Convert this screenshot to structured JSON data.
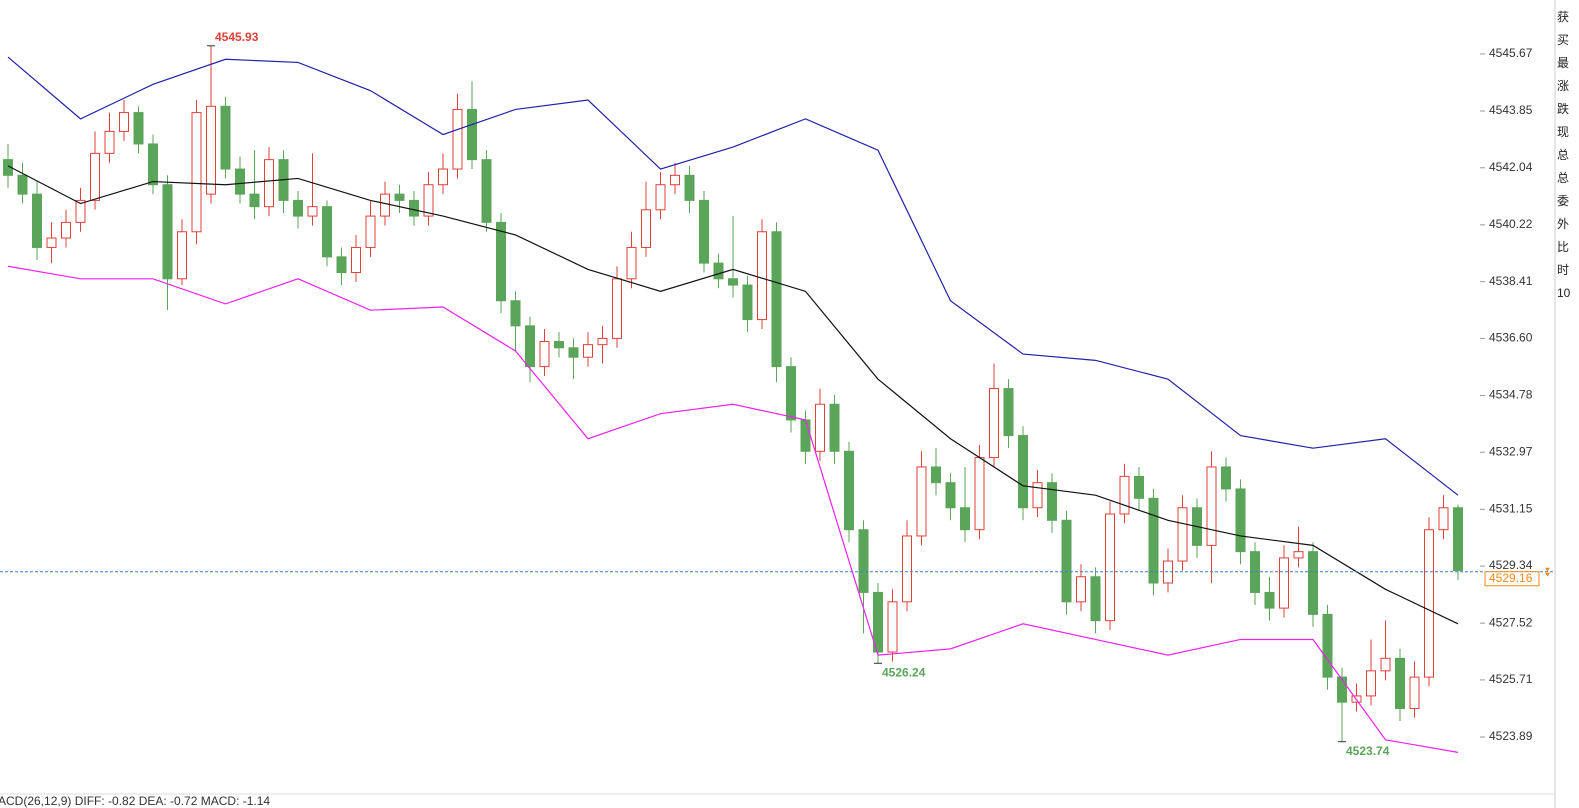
{
  "chart_data": {
    "type": "candlestick",
    "open": [
      4542.3,
      4541.8,
      4541.2,
      4539.5,
      4539.8,
      4540.3,
      4541.0,
      4542.5,
      4543.2,
      4543.8,
      4542.8,
      4541.5,
      4538.5,
      4540.0,
      4541.2,
      4544.0,
      4542.0,
      4541.2,
      4540.8,
      4542.3,
      4541.0,
      4540.5,
      4540.8,
      4539.2,
      4538.7,
      4539.5,
      4540.5,
      4541.2,
      4541.0,
      4540.5,
      4541.5,
      4542.0,
      4543.9,
      4542.3,
      4540.3,
      4537.8,
      4537.0,
      4535.7,
      4536.5,
      4536.3,
      4536.0,
      4536.4,
      4536.6,
      4538.5,
      4539.5,
      4540.7,
      4541.5,
      4541.8,
      4541.0,
      4539.0,
      4538.5,
      4538.3,
      4537.2,
      4540.0,
      4535.7,
      4534.0,
      4533.0,
      4534.5,
      4533.0,
      4530.5,
      4528.5,
      4526.6,
      4528.2,
      4530.3,
      4532.5,
      4532.0,
      4531.2,
      4530.5,
      4532.8,
      4535.0,
      4533.5,
      4531.2,
      4532.0,
      4530.8,
      4528.2,
      4529.0,
      4527.6,
      4531.0,
      4532.2,
      4531.5,
      4528.8,
      4529.5,
      4531.2,
      4530.0,
      4532.5,
      4531.8,
      4529.8,
      4528.5,
      4528.0,
      4529.6,
      4529.8,
      4527.8,
      4525.8,
      4525.0,
      4525.2,
      4526.0,
      4526.4,
      4524.8,
      4525.8,
      4530.5,
      4531.2
    ],
    "high": [
      4542.8,
      4542.2,
      4541.6,
      4540.3,
      4540.7,
      4541.4,
      4543.2,
      4543.8,
      4544.2,
      4544.0,
      4543.1,
      4541.8,
      4540.4,
      4544.2,
      4545.93,
      4544.3,
      4542.4,
      4542.6,
      4542.7,
      4542.6,
      4541.3,
      4542.5,
      4541.0,
      4539.5,
      4539.9,
      4541.0,
      4541.6,
      4541.5,
      4541.3,
      4541.9,
      4542.5,
      4544.4,
      4544.8,
      4542.6,
      4540.6,
      4538.1,
      4537.3,
      4536.9,
      4536.8,
      4536.6,
      4536.8,
      4537.0,
      4538.9,
      4540.0,
      4541.6,
      4541.9,
      4542.2,
      4542.1,
      4541.3,
      4539.3,
      4540.5,
      4538.6,
      4540.4,
      4540.3,
      4536.0,
      4534.3,
      4535.0,
      4534.8,
      4533.3,
      4530.8,
      4528.8,
      4528.6,
      4530.8,
      4533.0,
      4533.1,
      4532.3,
      4532.5,
      4533.2,
      4535.8,
      4535.3,
      4533.8,
      4532.4,
      4532.3,
      4531.1,
      4529.4,
      4529.3,
      4531.4,
      4532.6,
      4532.5,
      4531.8,
      4529.9,
      4531.6,
      4531.5,
      4533.0,
      4532.8,
      4532.1,
      4530.1,
      4529.0,
      4530.0,
      4530.6,
      4530.1,
      4528.1,
      4526.1,
      4525.6,
      4527.0,
      4527.6,
      4526.7,
      4526.3,
      4530.9,
      4531.6,
      4531.3
    ],
    "low": [
      4541.4,
      4540.9,
      4539.1,
      4539.0,
      4539.5,
      4540.0,
      4540.7,
      4542.2,
      4542.9,
      4542.5,
      4541.2,
      4537.5,
      4538.3,
      4539.6,
      4540.9,
      4541.7,
      4540.9,
      4540.4,
      4540.5,
      4540.6,
      4540.1,
      4540.2,
      4538.9,
      4538.3,
      4538.4,
      4539.2,
      4540.2,
      4540.6,
      4540.2,
      4540.2,
      4541.2,
      4541.7,
      4542.0,
      4540.0,
      4537.4,
      4536.2,
      4535.2,
      4535.4,
      4536.0,
      4535.3,
      4535.7,
      4535.8,
      4536.3,
      4538.2,
      4539.2,
      4540.4,
      4541.2,
      4540.6,
      4538.7,
      4538.2,
      4537.9,
      4536.8,
      4536.9,
      4535.2,
      4533.6,
      4532.6,
      4532.7,
      4532.6,
      4530.1,
      4527.2,
      4526.24,
      4526.3,
      4527.9,
      4530.0,
      4531.6,
      4530.8,
      4530.1,
      4530.2,
      4532.5,
      4533.1,
      4530.8,
      4530.9,
      4530.4,
      4527.8,
      4527.9,
      4527.2,
      4527.3,
      4530.7,
      4531.1,
      4528.4,
      4528.5,
      4529.2,
      4529.6,
      4528.8,
      4531.4,
      4529.4,
      4528.1,
      4527.6,
      4527.7,
      4529.3,
      4527.4,
      4525.4,
      4523.74,
      4524.7,
      4524.9,
      4525.7,
      4524.4,
      4524.5,
      4525.5,
      4530.2,
      4528.9
    ],
    "close": [
      4541.8,
      4541.2,
      4539.5,
      4539.8,
      4540.3,
      4541.0,
      4542.5,
      4543.2,
      4543.8,
      4542.8,
      4541.5,
      4538.5,
      4540.0,
      4543.8,
      4544.0,
      4542.0,
      4541.2,
      4540.8,
      4542.3,
      4541.0,
      4540.5,
      4540.8,
      4539.2,
      4538.7,
      4539.5,
      4540.5,
      4541.2,
      4541.0,
      4540.5,
      4541.5,
      4542.0,
      4543.9,
      4542.3,
      4540.3,
      4537.8,
      4537.0,
      4535.7,
      4536.5,
      4536.3,
      4536.0,
      4536.4,
      4536.6,
      4538.5,
      4539.5,
      4540.7,
      4541.5,
      4541.8,
      4541.0,
      4539.0,
      4538.5,
      4538.3,
      4537.2,
      4540.0,
      4535.7,
      4534.0,
      4533.0,
      4534.5,
      4533.0,
      4530.5,
      4528.5,
      4526.6,
      4528.2,
      4530.3,
      4532.5,
      4532.0,
      4531.2,
      4530.5,
      4532.8,
      4535.0,
      4533.5,
      4531.2,
      4532.0,
      4530.8,
      4528.2,
      4529.0,
      4527.6,
      4531.0,
      4532.2,
      4531.5,
      4528.8,
      4529.5,
      4531.2,
      4530.0,
      4532.5,
      4531.8,
      4529.8,
      4528.5,
      4528.0,
      4529.6,
      4529.8,
      4527.8,
      4525.8,
      4525.0,
      4525.2,
      4526.0,
      4526.4,
      4524.8,
      4525.8,
      4530.5,
      4531.2,
      4529.2
    ],
    "up_color": "#e0403a",
    "down_color": "#5aa55a",
    "band_x": [
      0,
      5,
      10,
      15,
      20,
      25,
      30,
      35,
      40,
      45,
      50,
      55,
      60,
      65,
      70,
      75,
      80,
      85,
      90,
      95,
      100
    ],
    "series": [
      {
        "color": "#2222a8",
        "values": [
          4545.57,
          4543.6,
          4544.7,
          4545.5,
          4545.4,
          4544.5,
          4543.1,
          4543.9,
          4544.2,
          4542.0,
          4542.7,
          4543.6,
          4542.6,
          4537.8,
          4536.1,
          4535.9,
          4535.3,
          4533.5,
          4533.1,
          4533.4,
          4531.6
        ]
      },
      {
        "color": "#111111",
        "values": [
          4542.1,
          4540.9,
          4541.6,
          4541.5,
          4541.7,
          4541.0,
          4540.5,
          4539.9,
          4538.8,
          4538.1,
          4538.8,
          4538.1,
          4535.3,
          4533.4,
          4531.9,
          4531.6,
          4530.8,
          4530.3,
          4530.0,
          4528.6,
          4527.5
        ]
      },
      {
        "color": "#ee22ee",
        "values": [
          4538.9,
          4538.5,
          4538.5,
          4537.7,
          4538.5,
          4537.5,
          4537.6,
          4536.2,
          4533.4,
          4534.2,
          4534.5,
          4534.0,
          4526.5,
          4526.7,
          4527.5,
          4527.0,
          4526.5,
          4527.0,
          4527.0,
          4523.8,
          4523.4
        ]
      }
    ],
    "markers": [
      4545.93,
      4526.24,
      4523.74
    ],
    "last_price": 4529.16,
    "ylim": [
      4522.2,
      4547.39
    ],
    "yticks": [
      4523.89,
      4525.71,
      4527.52,
      4529.34,
      4531.15,
      4532.97,
      4534.78,
      {
        "value": 4536.6,
        "label": "4536.60"
      },
      4538.41,
      4540.22,
      4542.04,
      4543.85,
      4545.67
    ],
    "indicator_label": "ACD(26,12,9) DIFF: -0.82 DEA: -0.72 MACD: -1.14",
    "side_labels": [
      "获",
      "买",
      "最",
      "涨",
      "跌",
      "现",
      "总",
      "总",
      "委",
      "外",
      "比",
      "时",
      "10"
    ]
  }
}
